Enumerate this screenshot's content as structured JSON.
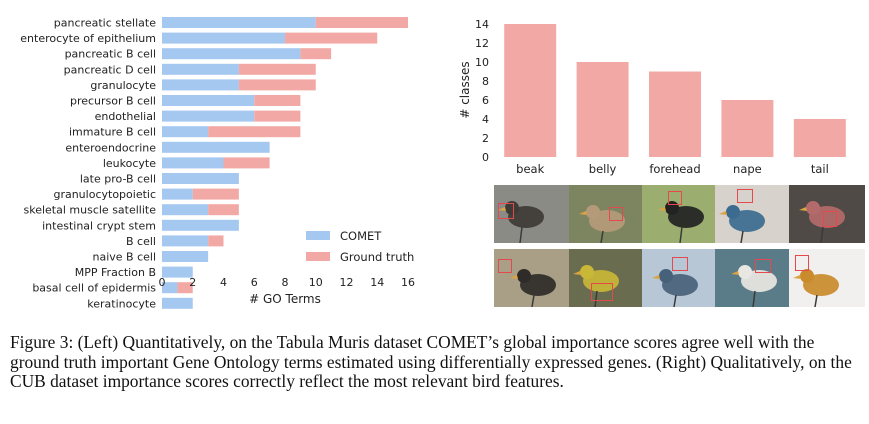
{
  "chart_data": [
    {
      "type": "bar",
      "orientation": "horizontal",
      "stacked": true,
      "categories": [
        "pancreatic stellate",
        "enterocyte of epithelium",
        "pancreatic B cell",
        "pancreatic D cell",
        "granulocyte",
        "precursor B cell",
        "endothelial",
        "immature B cell",
        "enteroendocrine",
        "leukocyte",
        "late pro-B cell",
        "granulocytopoietic",
        "skeletal muscle satellite",
        "intestinal crypt stem",
        "B cell",
        "naive B cell",
        "MPP Fraction B",
        "basal cell of epidermis",
        "keratinocyte"
      ],
      "series": [
        {
          "name": "COMET",
          "color": "#a4c8f0",
          "values": [
            10,
            8,
            9,
            5,
            5,
            6,
            6,
            3,
            7,
            4,
            5,
            2,
            3,
            5,
            3,
            3,
            2,
            1,
            2
          ]
        },
        {
          "name": "Ground truth",
          "color": "#f2a9a6",
          "values": [
            6,
            6,
            2,
            5,
            5,
            3,
            3,
            6,
            0,
            3,
            0,
            3,
            2,
            0,
            1,
            0,
            0,
            1,
            0
          ]
        }
      ],
      "xlabel": "# GO Terms",
      "xticks": [
        "0",
        "2",
        "4",
        "6",
        "8",
        "10",
        "12",
        "14",
        "16"
      ],
      "xlim": [
        0,
        16
      ],
      "legend_position": "bottom-right",
      "grid": false
    },
    {
      "type": "bar",
      "categories": [
        "beak",
        "belly",
        "forehead",
        "nape",
        "tail"
      ],
      "values": [
        14,
        10,
        9,
        6,
        4
      ],
      "color": "#f2a9a6",
      "ylabel": "# classes",
      "yticks": [
        "0",
        "2",
        "4",
        "6",
        "8",
        "10",
        "12",
        "14"
      ],
      "ylim": [
        0,
        14
      ],
      "grid": false
    }
  ],
  "bird_grid": {
    "rows": 2,
    "columns": 5,
    "thumbnails": [
      {
        "bg": "#8b8b86",
        "bird": "#3e3a36"
      },
      {
        "bg": "#7d8560",
        "bird": "#b59a7a"
      },
      {
        "bg": "#9bae6f",
        "bird": "#222222"
      },
      {
        "bg": "#d7d2cb",
        "bird": "#3b6b8f"
      },
      {
        "bg": "#4f4a45",
        "bird": "#b46a6a"
      },
      {
        "bg": "#a89f86",
        "bird": "#2f2b29"
      },
      {
        "bg": "#6a6c4f",
        "bird": "#c9b737"
      },
      {
        "bg": "#b8c7d6",
        "bird": "#48617a"
      },
      {
        "bg": "#5a7c88",
        "bird": "#e9e7e2"
      },
      {
        "bg": "#f2f0ee",
        "bird": "#c98b2b"
      }
    ]
  },
  "caption": "Figure 3: (Left) Quantitatively, on the Tabula Muris dataset COMET’s global importance scores agree well with the ground truth important Gene Ontology terms estimated using differentially expressed genes. (Right) Qualitatively, on the CUB dataset importance scores correctly reflect the most relevant bird features."
}
